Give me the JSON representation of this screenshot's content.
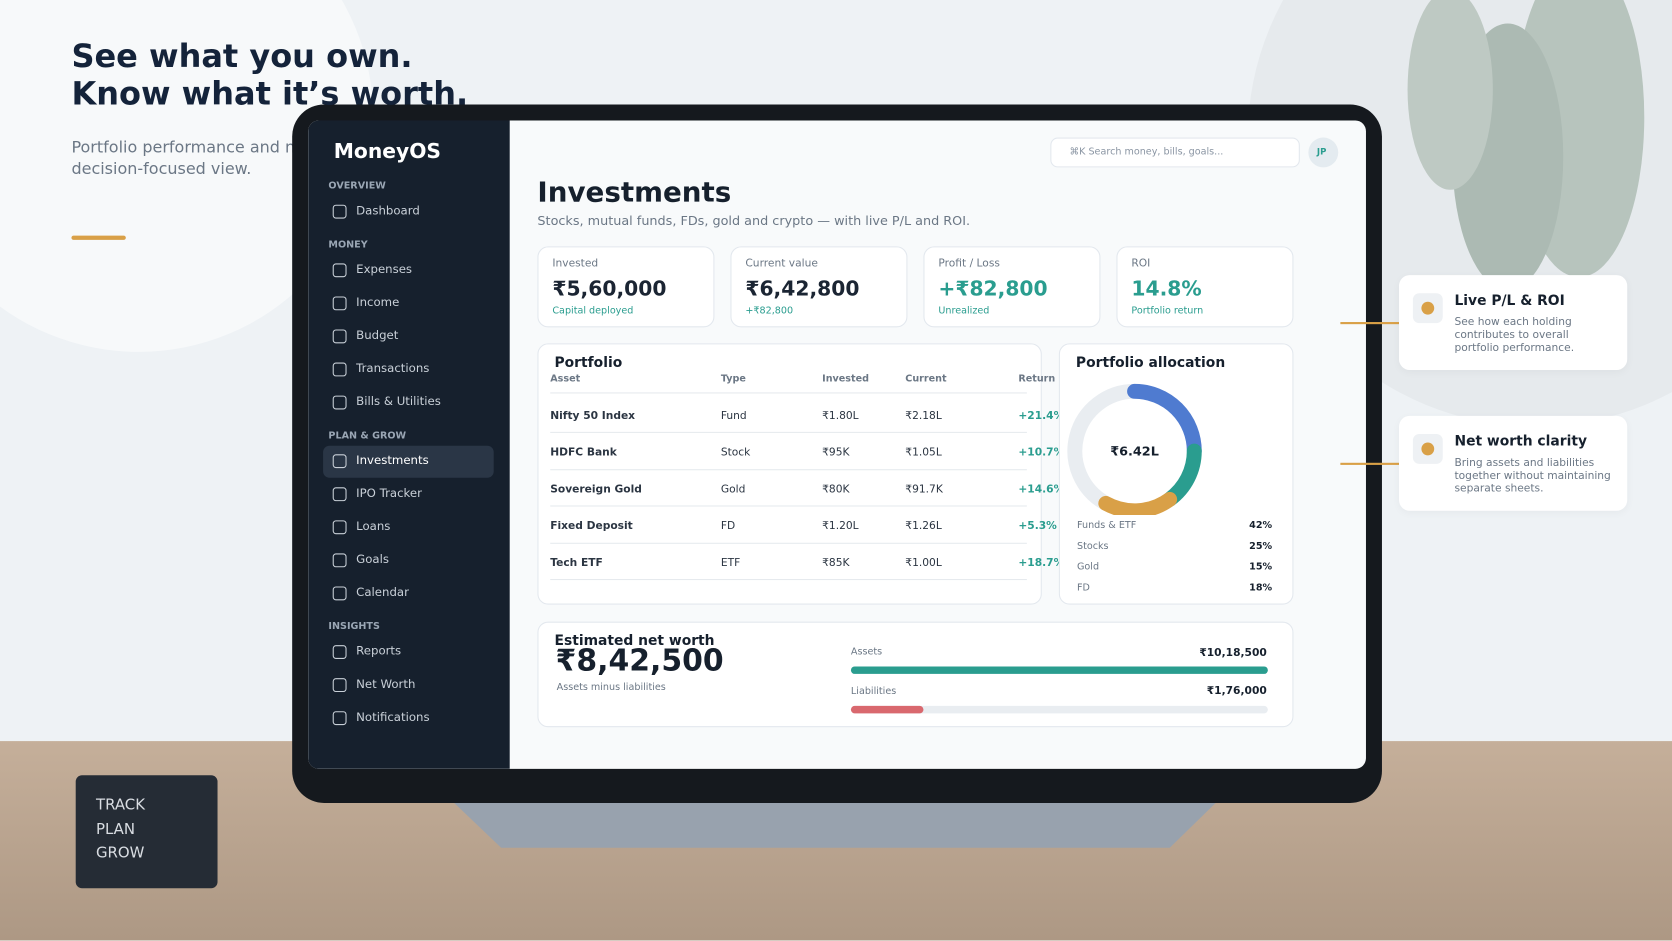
{
  "hero": {
    "headline": [
      "See what you own.",
      "Know what it’s worth."
    ],
    "subtitle": [
      "Portfolio performance and ne",
      "decision-focused view."
    ]
  },
  "badge": [
    "TRACK",
    "PLAN",
    "GROW"
  ],
  "app": {
    "brand": "MoneyOS",
    "nav": [
      {
        "section": "OVERVIEW",
        "items": [
          {
            "label": "Dashboard"
          }
        ]
      },
      {
        "section": "MONEY",
        "items": [
          {
            "label": "Expenses"
          },
          {
            "label": "Income"
          },
          {
            "label": "Budget"
          },
          {
            "label": "Transactions"
          },
          {
            "label": "Bills & Utilities"
          }
        ]
      },
      {
        "section": "PLAN & GROW",
        "items": [
          {
            "label": "Investments",
            "active": true
          },
          {
            "label": "IPO Tracker"
          },
          {
            "label": "Loans"
          },
          {
            "label": "Goals"
          },
          {
            "label": "Calendar"
          }
        ]
      },
      {
        "section": "INSIGHTS",
        "items": [
          {
            "label": "Reports"
          },
          {
            "label": "Net Worth"
          },
          {
            "label": "Notifications"
          }
        ]
      }
    ],
    "search": "⌘K Search money, bills, goals...",
    "avatar": "JP",
    "page": {
      "title": "Investments",
      "subtitle": "Stocks, mutual funds, FDs, gold and crypto — with live P/L and ROI."
    },
    "kpis": [
      {
        "label": "Invested",
        "value": "₹5,60,000",
        "note": "Capital deployed",
        "color": "#1b2533"
      },
      {
        "label": "Current value",
        "value": "₹6,42,800",
        "note": "+₹82,800",
        "color": "#1b2533"
      },
      {
        "label": "Profit / Loss",
        "value": "+₹82,800",
        "note": "Unrealized",
        "color": "#2a9d8f"
      },
      {
        "label": "ROI",
        "value": "14.8%",
        "note": "Portfolio return",
        "color": "#2a9d8f"
      }
    ],
    "portfolio": {
      "title": "Portfolio",
      "columns": [
        "Asset",
        "Type",
        "Invested",
        "Current",
        "Return"
      ],
      "rows": [
        [
          "Nifty 50 Index",
          "Fund",
          "₹1.80L",
          "₹2.18L",
          "+21.4%"
        ],
        [
          "HDFC Bank",
          "Stock",
          "₹95K",
          "₹1.05L",
          "+10.7%"
        ],
        [
          "Sovereign Gold",
          "Gold",
          "₹80K",
          "₹91.7K",
          "+14.6%"
        ],
        [
          "Fixed Deposit",
          "FD",
          "₹1.20L",
          "₹1.26L",
          "+5.3%"
        ],
        [
          "Tech ETF",
          "ETF",
          "₹85K",
          "₹1.00L",
          "+18.7%"
        ]
      ]
    },
    "allocation": {
      "title": "Portfolio allocation",
      "center": "₹6.42L",
      "slices": [
        {
          "name": "Funds & ETF",
          "value": 42,
          "label": "42%",
          "color": "#e9edf1"
        },
        {
          "name": "Stocks",
          "value": 25,
          "label": "25%",
          "color": "#4f7bd0"
        },
        {
          "name": "Gold",
          "value": 15,
          "label": "15%",
          "color": "#2a9d8f"
        },
        {
          "name": "FD",
          "value": 18,
          "label": "18%",
          "color": "#d9a047"
        }
      ]
    },
    "net_worth": {
      "title": "Estimated net worth",
      "value": "₹8,42,500",
      "note": "Assets minus liabilities",
      "bars": [
        {
          "name": "Assets",
          "value": 1018500,
          "label": "₹10,18,500",
          "color": "#2a9d8f"
        },
        {
          "name": "Liabilities",
          "value": 176000,
          "label": "₹1,76,000",
          "color": "#d9686e"
        }
      ]
    }
  },
  "callouts": [
    {
      "title": "Live P/L & ROI",
      "text": [
        "See how each holding",
        "contributes to overall",
        "portfolio performance."
      ]
    },
    {
      "title": "Net worth clarity",
      "text": [
        "Bring assets and liabilities",
        "together without maintaining",
        "separate sheets."
      ]
    }
  ]
}
